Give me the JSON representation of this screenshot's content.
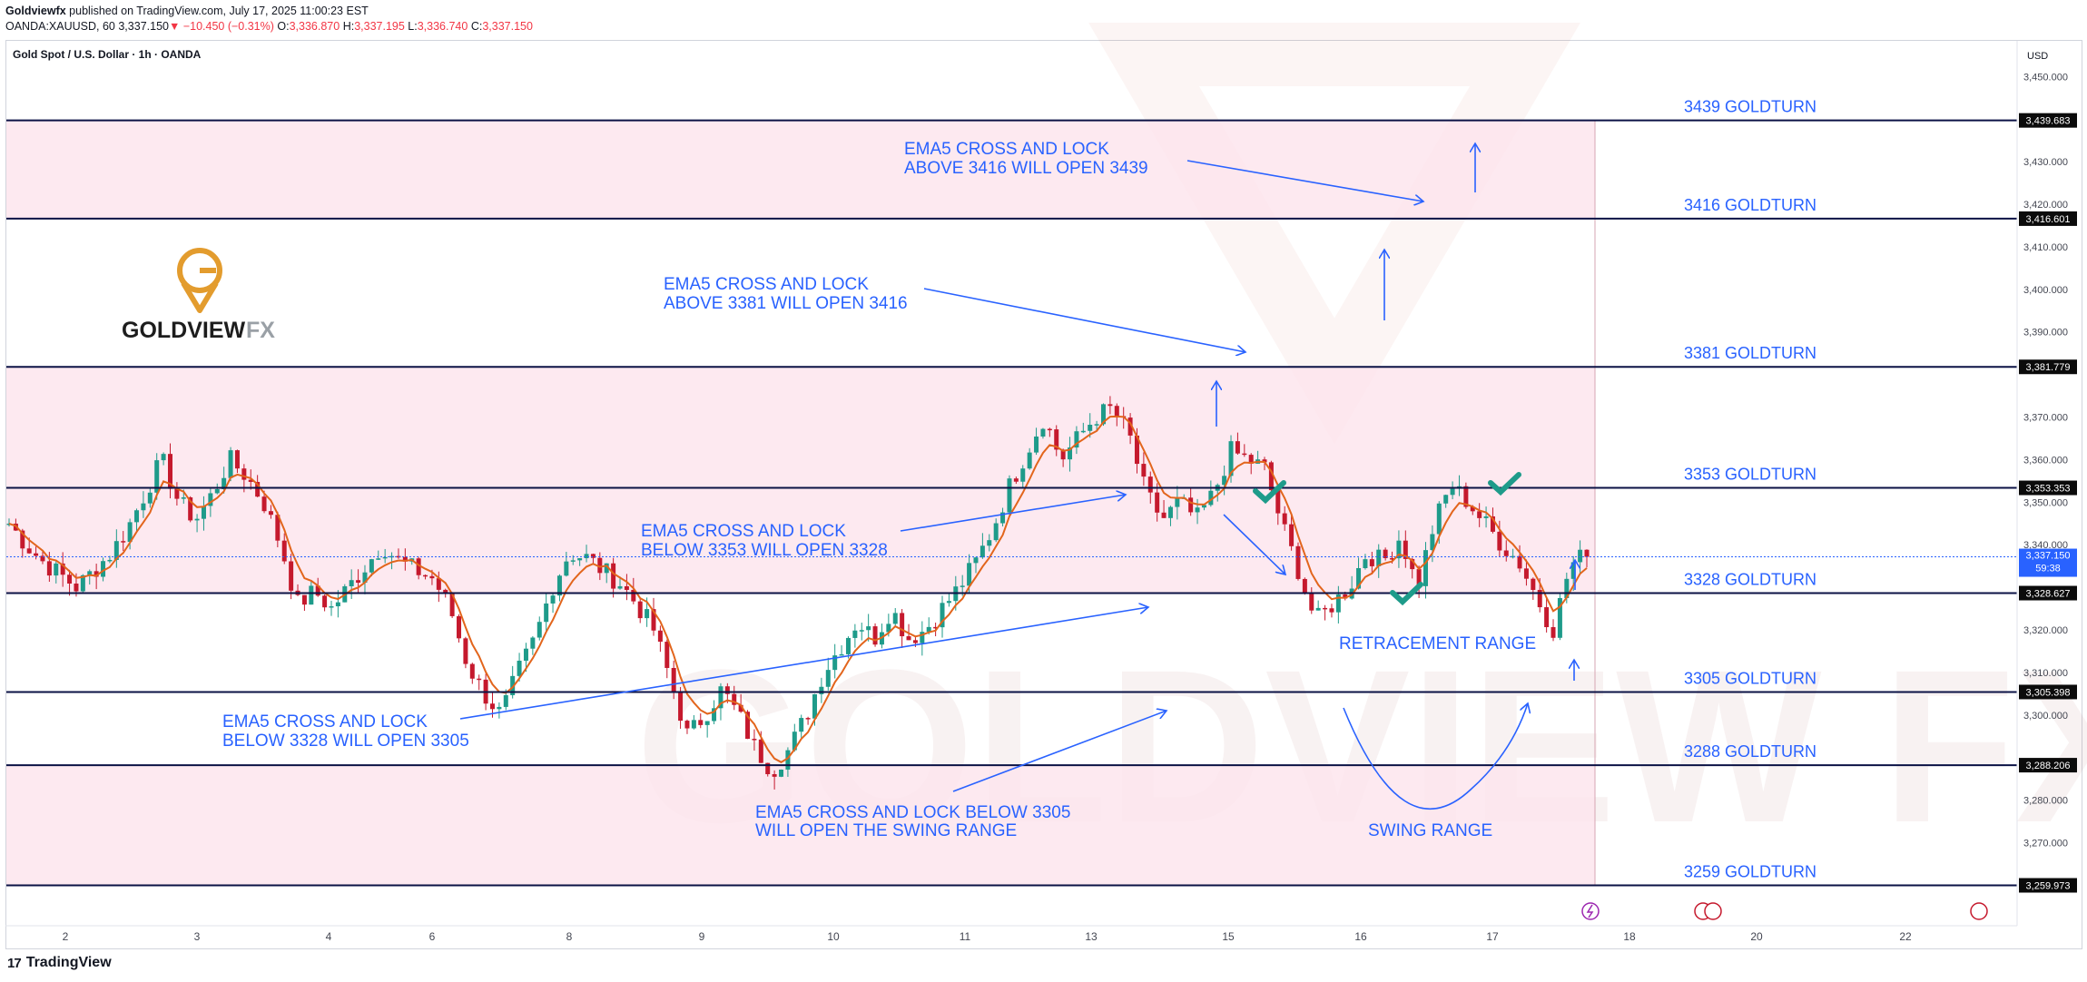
{
  "header": {
    "author": "Goldviewfx",
    "published": "published on TradingView.com, July 17, 2025 11:00:23 EST",
    "symbol": "OANDA:XAUUSD, 60",
    "last": "3,337.150",
    "change": "−10.450 (−0.31%)",
    "o_label": "O:",
    "o": "3,336.870",
    "h_label": "H:",
    "h": "3,337.195",
    "l_label": "L:",
    "l": "3,336.740",
    "c_label": "C:",
    "c": "3,337.150"
  },
  "instrument_title": "Gold Spot / U.S. Dollar · 1h · OANDA",
  "currency": "USD",
  "logo": {
    "name": "GOLDVIEW",
    "suffix": "FX"
  },
  "footer": {
    "brand": "TradingView"
  },
  "colors": {
    "up": "#1e9b8a",
    "down": "#c5192d",
    "ema": "#e2651c",
    "annotation": "#2962ff",
    "zone": "#fce4ec",
    "level_line": "#0b1245",
    "check": "#1e9b8a"
  },
  "chart_data": {
    "type": "candlestick",
    "ylim": [
      3259.973,
      3452
    ],
    "y_ticks": [
      "3,450.000",
      "3,430.000",
      "3,420.000",
      "3,410.000",
      "3,400.000",
      "3,390.000",
      "3,370.000",
      "3,360.000",
      "3,350.000",
      "3,340.000",
      "3,320.000",
      "3,310.000",
      "3,300.000",
      "3,280.000",
      "3,270.000"
    ],
    "x_ticks": [
      "2",
      "3",
      "4",
      "6",
      "8",
      "9",
      "10",
      "11",
      "13",
      "15",
      "16",
      "17",
      "18",
      "20",
      "22"
    ],
    "current_price": {
      "price": "3,337.150",
      "countdown": "59:38",
      "value": 3337.15
    },
    "levels": [
      {
        "value": 3439.683,
        "tag": "3,439.683",
        "label": "3439 GOLDTURN"
      },
      {
        "value": 3416.601,
        "tag": "3,416.601",
        "label": "3416 GOLDTURN"
      },
      {
        "value": 3381.779,
        "tag": "3,381.779",
        "label": "3381 GOLDTURN"
      },
      {
        "value": 3353.353,
        "tag": "3,353.353",
        "label": "3353 GOLDTURN"
      },
      {
        "value": 3328.627,
        "tag": "3,328.627",
        "label": "3328 GOLDTURN"
      },
      {
        "value": 3305.398,
        "tag": "3,305.398",
        "label": "3305 GOLDTURN"
      },
      {
        "value": 3288.206,
        "tag": "3,288.206",
        "label": "3288 GOLDTURN"
      },
      {
        "value": 3259.973,
        "tag": "3,259.973",
        "label": "3259 GOLDTURN"
      }
    ],
    "zones": [
      [
        3416.601,
        3439.683
      ],
      [
        3353.353,
        3381.779
      ],
      [
        3328.627,
        3353.353
      ],
      [
        3259.973,
        3288.206
      ]
    ],
    "annotations": [
      {
        "line1": "EMA5 CROSS AND LOCK",
        "line2": "ABOVE 3416 WILL OPEN 3439"
      },
      {
        "line1": "EMA5 CROSS AND LOCK",
        "line2": "ABOVE 3381 WILL OPEN 3416"
      },
      {
        "line1": "EMA5 CROSS AND LOCK",
        "line2": "BELOW 3353 WILL OPEN 3328"
      },
      {
        "line1": "EMA5 CROSS AND LOCK",
        "line2": "BELOW 3328 WILL OPEN 3305"
      },
      {
        "line1": "EMA5 CROSS AND LOCK BELOW 3305",
        "line2": "WILL OPEN THE SWING RANGE"
      }
    ],
    "range_labels": [
      "RETRACEMENT RANGE",
      "SWING RANGE"
    ],
    "close_path": [
      3345,
      3340,
      3336,
      3333,
      3330,
      3334,
      3338,
      3344,
      3352,
      3360,
      3350,
      3346,
      3352,
      3360,
      3356,
      3350,
      3340,
      3326,
      3329,
      3325,
      3330,
      3335,
      3340,
      3336,
      3334,
      3332,
      3325,
      3312,
      3305,
      3300,
      3310,
      3318,
      3330,
      3338,
      3337,
      3334,
      3331,
      3326,
      3320,
      3308,
      3295,
      3300,
      3306,
      3300,
      3292,
      3287,
      3292,
      3300,
      3310,
      3316,
      3322,
      3318,
      3325,
      3318,
      3320,
      3325,
      3330,
      3336,
      3344,
      3354,
      3362,
      3370,
      3360,
      3365,
      3370,
      3372,
      3366,
      3352,
      3346,
      3350,
      3346,
      3352,
      3362,
      3360,
      3358,
      3345,
      3334,
      3322,
      3326,
      3330,
      3338,
      3336,
      3342,
      3330,
      3345,
      3354,
      3350,
      3345,
      3340,
      3336,
      3328,
      3320,
      3335,
      3338
    ]
  }
}
